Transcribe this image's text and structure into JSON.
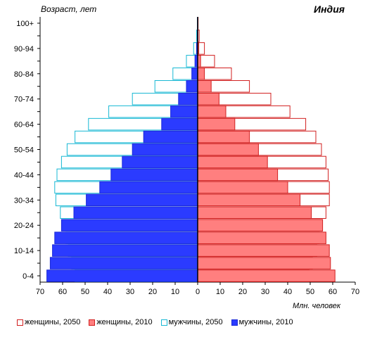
{
  "chart_data": {
    "type": "bar",
    "orientation": "horizontal",
    "title": "Индия",
    "ylabel": "Возраст, лет",
    "xlabel": "Млн. человек",
    "xlim": [
      -70,
      70
    ],
    "x_ticks": [
      -70,
      -60,
      -50,
      -40,
      -30,
      -20,
      -10,
      0,
      10,
      20,
      30,
      40,
      50,
      60,
      70
    ],
    "x_tick_labels": [
      "70",
      "60",
      "50",
      "40",
      "30",
      "20",
      "10",
      "0",
      "10",
      "20",
      "30",
      "40",
      "50",
      "60",
      "70"
    ],
    "age_groups": [
      "0-4",
      "5-9",
      "10-14",
      "15-19",
      "20-24",
      "25-29",
      "30-34",
      "35-39",
      "40-44",
      "45-49",
      "50-54",
      "55-59",
      "60-64",
      "65-69",
      "70-74",
      "75-79",
      "80-84",
      "85-89",
      "90-94",
      "95-99",
      "100+"
    ],
    "age_labels_shown": [
      "0-4",
      "10-14",
      "20-24",
      "30-34",
      "40-44",
      "50-54",
      "60-64",
      "70-74",
      "80-84",
      "90-94",
      "100+"
    ],
    "series": [
      {
        "name": "женщины, 2050",
        "side": "right",
        "style": "outline",
        "color": "#d11f1f",
        "values": [
          49.5,
          51,
          53,
          54,
          55,
          57,
          58.5,
          58.5,
          58,
          57,
          55,
          52.5,
          48,
          41,
          32.5,
          23,
          15,
          7.5,
          3,
          0.7,
          0.2
        ]
      },
      {
        "name": "женщины, 2010",
        "side": "right",
        "style": "filled",
        "color": "#ff7f7f",
        "values": [
          61,
          59,
          58.5,
          57,
          55.5,
          50.5,
          45.5,
          40,
          35.5,
          31,
          27,
          23,
          16.5,
          12.5,
          9.5,
          6,
          3,
          1.3,
          0.5,
          0.15,
          0.05
        ]
      },
      {
        "name": "мужчины, 2050",
        "side": "left",
        "style": "outline",
        "color": "#17b8d4",
        "values": [
          54.5,
          56,
          57.5,
          58.5,
          59.5,
          61,
          63,
          63.5,
          62.5,
          60.5,
          58,
          54.5,
          48.5,
          39.5,
          29,
          19,
          11,
          5,
          1.8,
          0.5,
          0.15
        ]
      },
      {
        "name": "мужчины, 2010",
        "side": "left",
        "style": "filled",
        "color": "#2b3bff",
        "values": [
          67,
          65.5,
          64.5,
          63.5,
          60.5,
          55,
          49.5,
          43.5,
          38.5,
          33.5,
          29,
          24,
          16,
          12,
          8.5,
          5,
          2.6,
          1.2,
          0.5,
          0.15,
          0.05
        ]
      }
    ],
    "grid": false,
    "legend_position": "bottom"
  }
}
